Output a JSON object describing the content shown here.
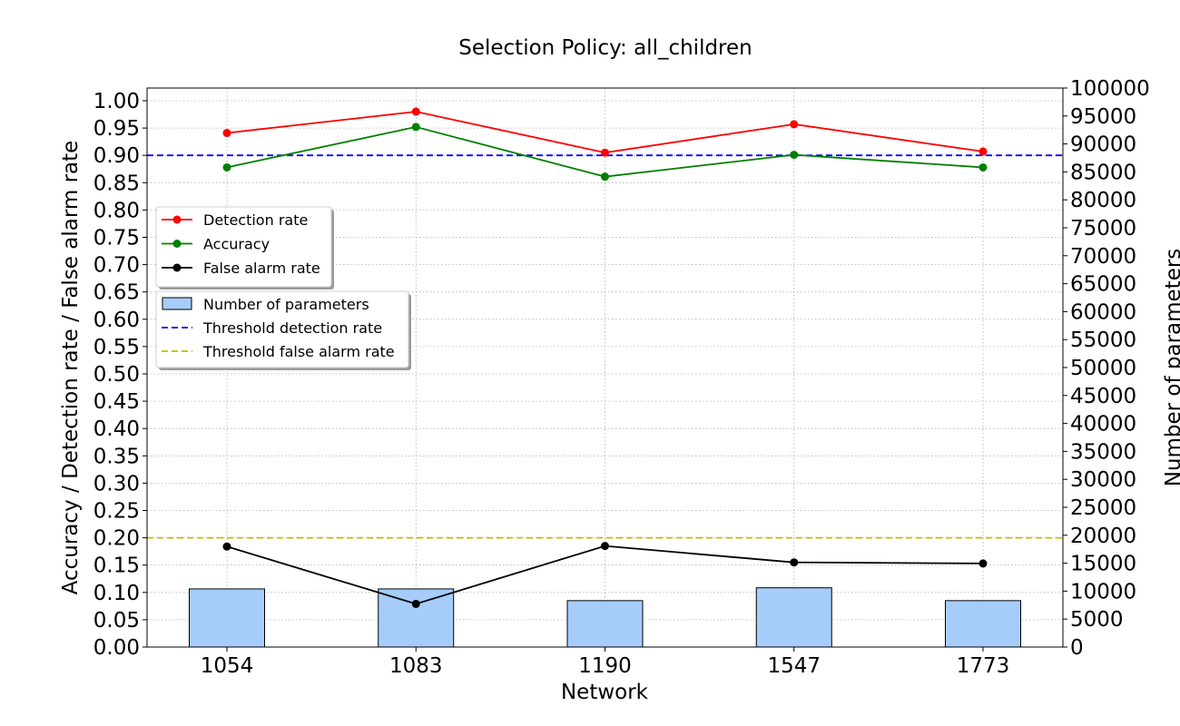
{
  "chart_data": {
    "type": "bar+line",
    "title": "Selection Policy: all_children",
    "xlabel": "Network",
    "ylabel_left": "Accuracy / Detection rate / False alarm rate",
    "ylabel_right": "Number of parameters",
    "categories": [
      "1054",
      "1083",
      "1190",
      "1547",
      "1773"
    ],
    "ylim_left": [
      0,
      1.02
    ],
    "ylim_right": [
      0,
      100000
    ],
    "yticks_left": [
      "0.00",
      "0.05",
      "0.10",
      "0.15",
      "0.20",
      "0.25",
      "0.30",
      "0.35",
      "0.40",
      "0.45",
      "0.50",
      "0.55",
      "0.60",
      "0.65",
      "0.70",
      "0.75",
      "0.80",
      "0.85",
      "0.90",
      "0.95",
      "1.00"
    ],
    "yticks_right": [
      "0",
      "5000",
      "10000",
      "15000",
      "20000",
      "25000",
      "30000",
      "35000",
      "40000",
      "45000",
      "50000",
      "55000",
      "60000",
      "65000",
      "70000",
      "75000",
      "80000",
      "85000",
      "90000",
      "95000",
      "100000"
    ],
    "grid": true,
    "bars": {
      "name": "Number of parameters",
      "axis": "right",
      "values": [
        10400,
        10400,
        8300,
        10600,
        8300
      ],
      "color": "#a6cdfa"
    },
    "series": [
      {
        "name": "Detection rate",
        "axis": "left",
        "values": [
          0.941,
          0.98,
          0.905,
          0.957,
          0.907
        ],
        "color": "#ff0000"
      },
      {
        "name": "Accuracy",
        "axis": "left",
        "values": [
          0.878,
          0.952,
          0.861,
          0.901,
          0.878
        ],
        "color": "#008000"
      },
      {
        "name": "False alarm rate",
        "axis": "left",
        "values": [
          0.184,
          0.079,
          0.185,
          0.155,
          0.153
        ],
        "color": "#000000"
      }
    ],
    "thresholds": [
      {
        "name": "Threshold detection rate",
        "value": 0.9,
        "color": "#0000ff"
      },
      {
        "name": "Threshold false alarm rate",
        "value": 0.2,
        "color": "#bfbf00"
      }
    ],
    "legend_positions": [
      "upper-left",
      "upper-left (below first legend)"
    ]
  }
}
